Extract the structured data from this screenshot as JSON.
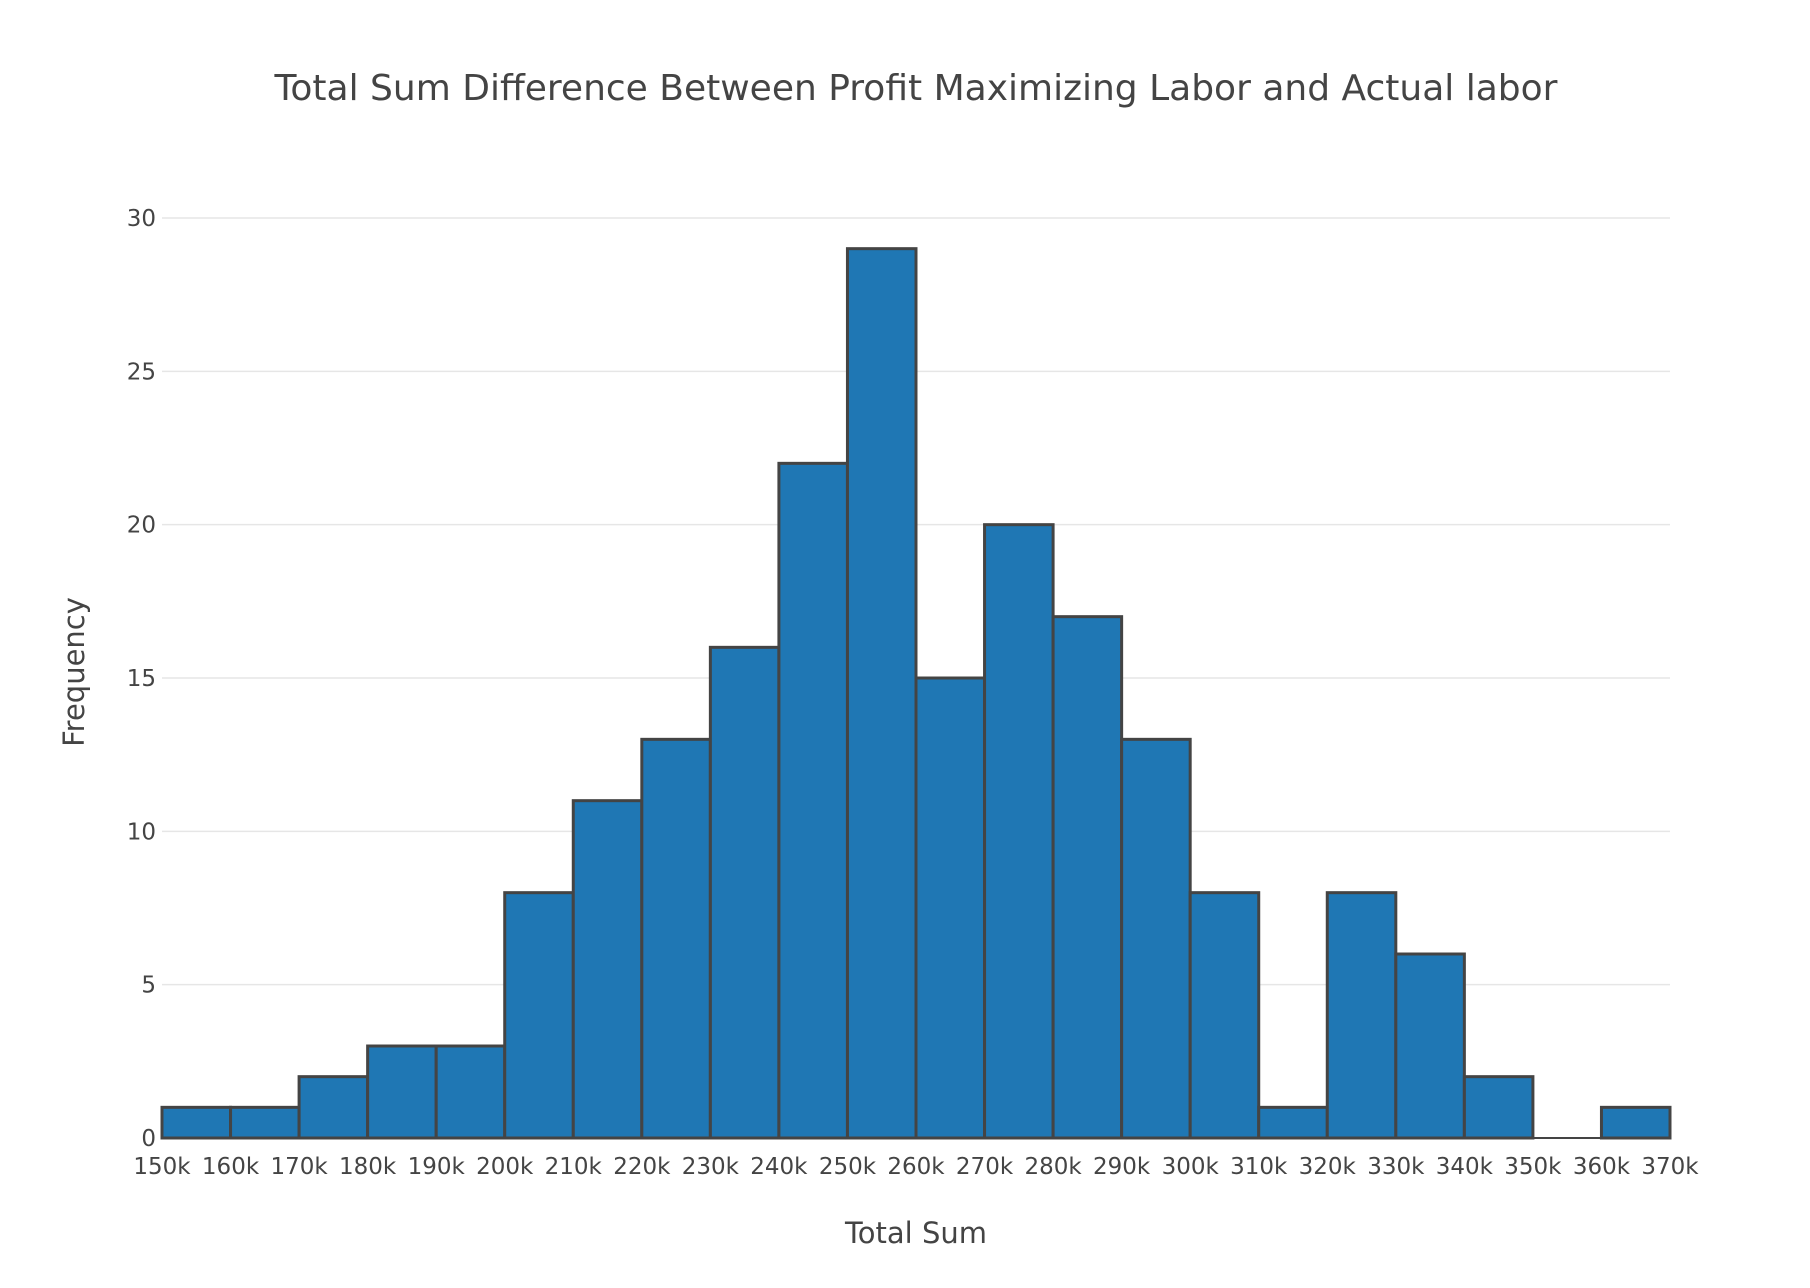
{
  "chart_data": {
    "type": "bar",
    "title": "Total Sum Difference Between Profit Maximizing Labor and Actual labor",
    "xlabel": "Total Sum",
    "ylabel": "Frequency",
    "x_tick_labels": [
      "150k",
      "160k",
      "170k",
      "180k",
      "190k",
      "200k",
      "210k",
      "220k",
      "230k",
      "240k",
      "250k",
      "260k",
      "270k",
      "280k",
      "290k",
      "300k",
      "310k",
      "320k",
      "330k",
      "340k",
      "350k",
      "360k",
      "370k"
    ],
    "y_tick_labels": [
      "0",
      "5",
      "10",
      "15",
      "20",
      "25",
      "30"
    ],
    "bin_width": 10000,
    "bins": [
      {
        "start": 150000,
        "end": 160000,
        "count": 1
      },
      {
        "start": 160000,
        "end": 170000,
        "count": 1
      },
      {
        "start": 170000,
        "end": 180000,
        "count": 2
      },
      {
        "start": 180000,
        "end": 190000,
        "count": 3
      },
      {
        "start": 190000,
        "end": 200000,
        "count": 3
      },
      {
        "start": 200000,
        "end": 210000,
        "count": 8
      },
      {
        "start": 210000,
        "end": 220000,
        "count": 11
      },
      {
        "start": 220000,
        "end": 230000,
        "count": 13
      },
      {
        "start": 230000,
        "end": 240000,
        "count": 16
      },
      {
        "start": 240000,
        "end": 250000,
        "count": 22
      },
      {
        "start": 250000,
        "end": 260000,
        "count": 29
      },
      {
        "start": 260000,
        "end": 270000,
        "count": 15
      },
      {
        "start": 270000,
        "end": 280000,
        "count": 20
      },
      {
        "start": 280000,
        "end": 290000,
        "count": 17
      },
      {
        "start": 290000,
        "end": 300000,
        "count": 13
      },
      {
        "start": 300000,
        "end": 310000,
        "count": 8
      },
      {
        "start": 310000,
        "end": 320000,
        "count": 1
      },
      {
        "start": 320000,
        "end": 330000,
        "count": 8
      },
      {
        "start": 330000,
        "end": 340000,
        "count": 6
      },
      {
        "start": 340000,
        "end": 350000,
        "count": 2
      },
      {
        "start": 350000,
        "end": 360000,
        "count": 0
      },
      {
        "start": 360000,
        "end": 370000,
        "count": 1
      }
    ],
    "xlim": [
      150000,
      370000
    ],
    "ylim": [
      0,
      30
    ],
    "y_ticks": [
      0,
      5,
      10,
      15,
      20,
      25,
      30
    ],
    "grid": true,
    "legend": "none",
    "colors": {
      "bar_fill": "#1f77b4",
      "bar_outline": "#444444",
      "grid": "#e6e6e6",
      "text": "#444444"
    }
  }
}
